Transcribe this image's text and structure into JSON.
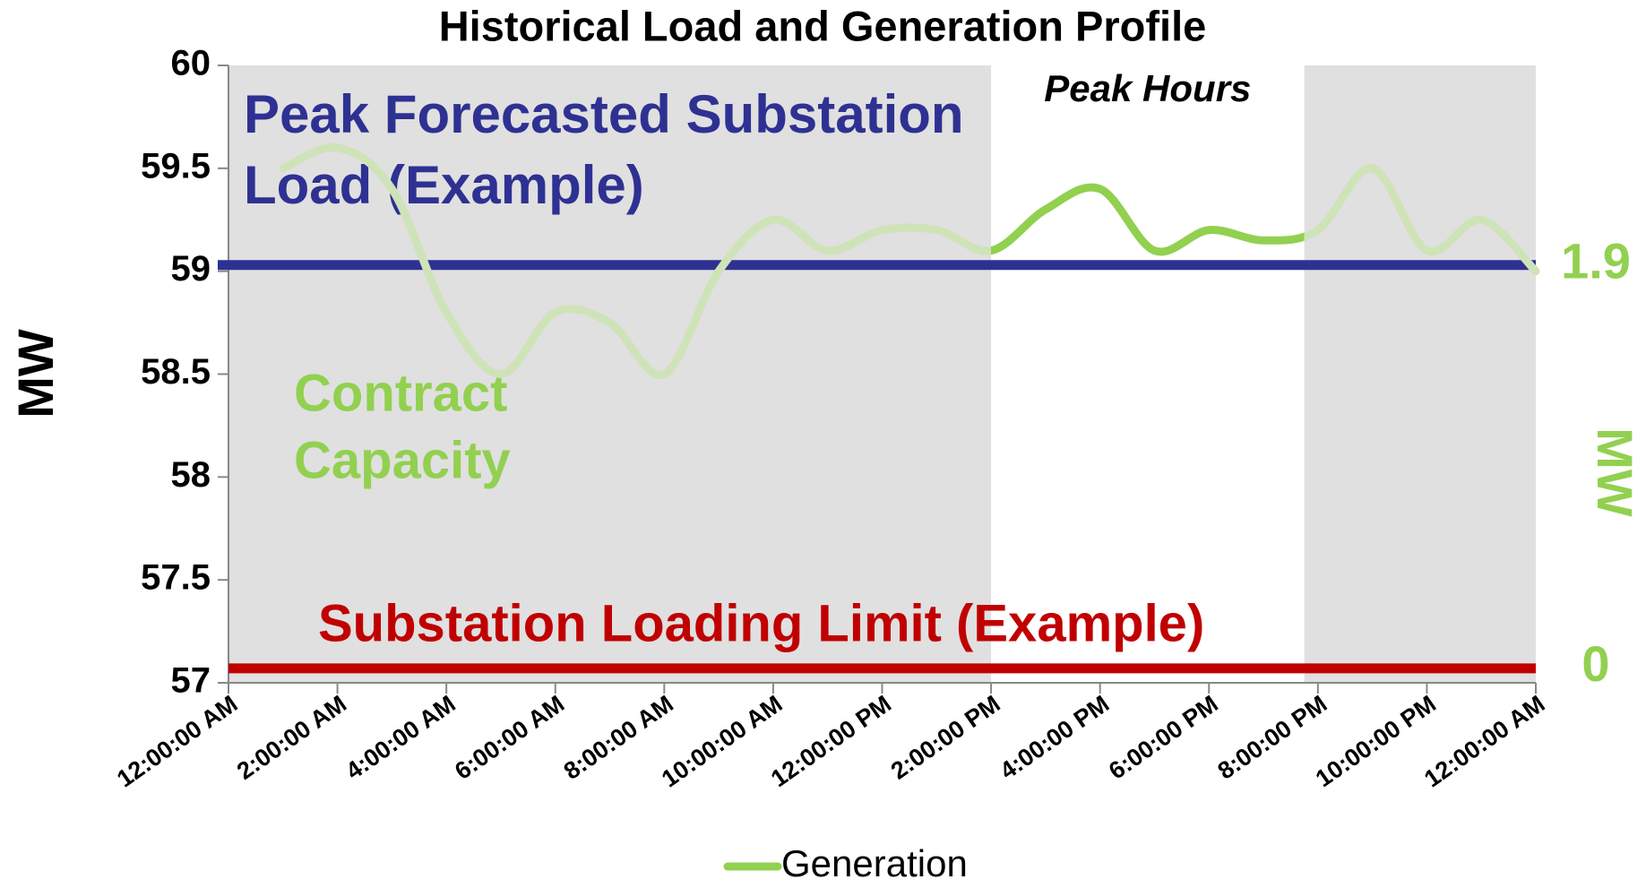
{
  "chart_data": {
    "type": "line",
    "title": "Historical Load and Generation Profile",
    "y_label": "MW",
    "y2_label": "MW",
    "categories": [
      "12:00:00 AM",
      null,
      "2:00:00 AM",
      null,
      "4:00:00 AM",
      null,
      "6:00:00 AM",
      null,
      "8:00:00 AM",
      null,
      "10:00:00 AM",
      null,
      "12:00:00 PM",
      null,
      "2:00:00 PM",
      null,
      "4:00:00 PM",
      null,
      "6:00:00 PM",
      null,
      "8:00:00 PM",
      null,
      "10:00:00 PM",
      null,
      "12:00:00 AM"
    ],
    "series": [
      {
        "name": "Generation",
        "color": "#92d050",
        "values": [
          null,
          59.5,
          59.6,
          59.4,
          58.8,
          58.5,
          58.8,
          58.75,
          58.5,
          59.0,
          59.25,
          59.1,
          59.2,
          59.2,
          59.1,
          59.3,
          59.4,
          59.1,
          59.2,
          59.15,
          59.2,
          59.5,
          59.1,
          59.25,
          59.0
        ]
      }
    ],
    "ylim": [
      57,
      60
    ],
    "yticks": [
      57,
      57.5,
      58,
      58.5,
      59,
      59.5,
      60
    ],
    "y2lim": [
      -0.07,
      2.84
    ],
    "y2ticks": [
      0,
      1.9
    ],
    "y2_color": "#92d050",
    "peak_hours": {
      "label": "Peak Hours",
      "start": 14,
      "end": 19.75
    },
    "reference_lines": [
      {
        "label": [
          "Peak Forecasted Substation",
          "Load (Example)"
        ],
        "value": 59.03,
        "color": "#2e3192"
      },
      {
        "label": [
          "Substation Loading Limit (Example)"
        ],
        "value": 57.07,
        "color": "#c00000"
      }
    ],
    "annotation": [
      "Contract",
      "Capacity"
    ],
    "grid": false,
    "legend": "bottom"
  }
}
